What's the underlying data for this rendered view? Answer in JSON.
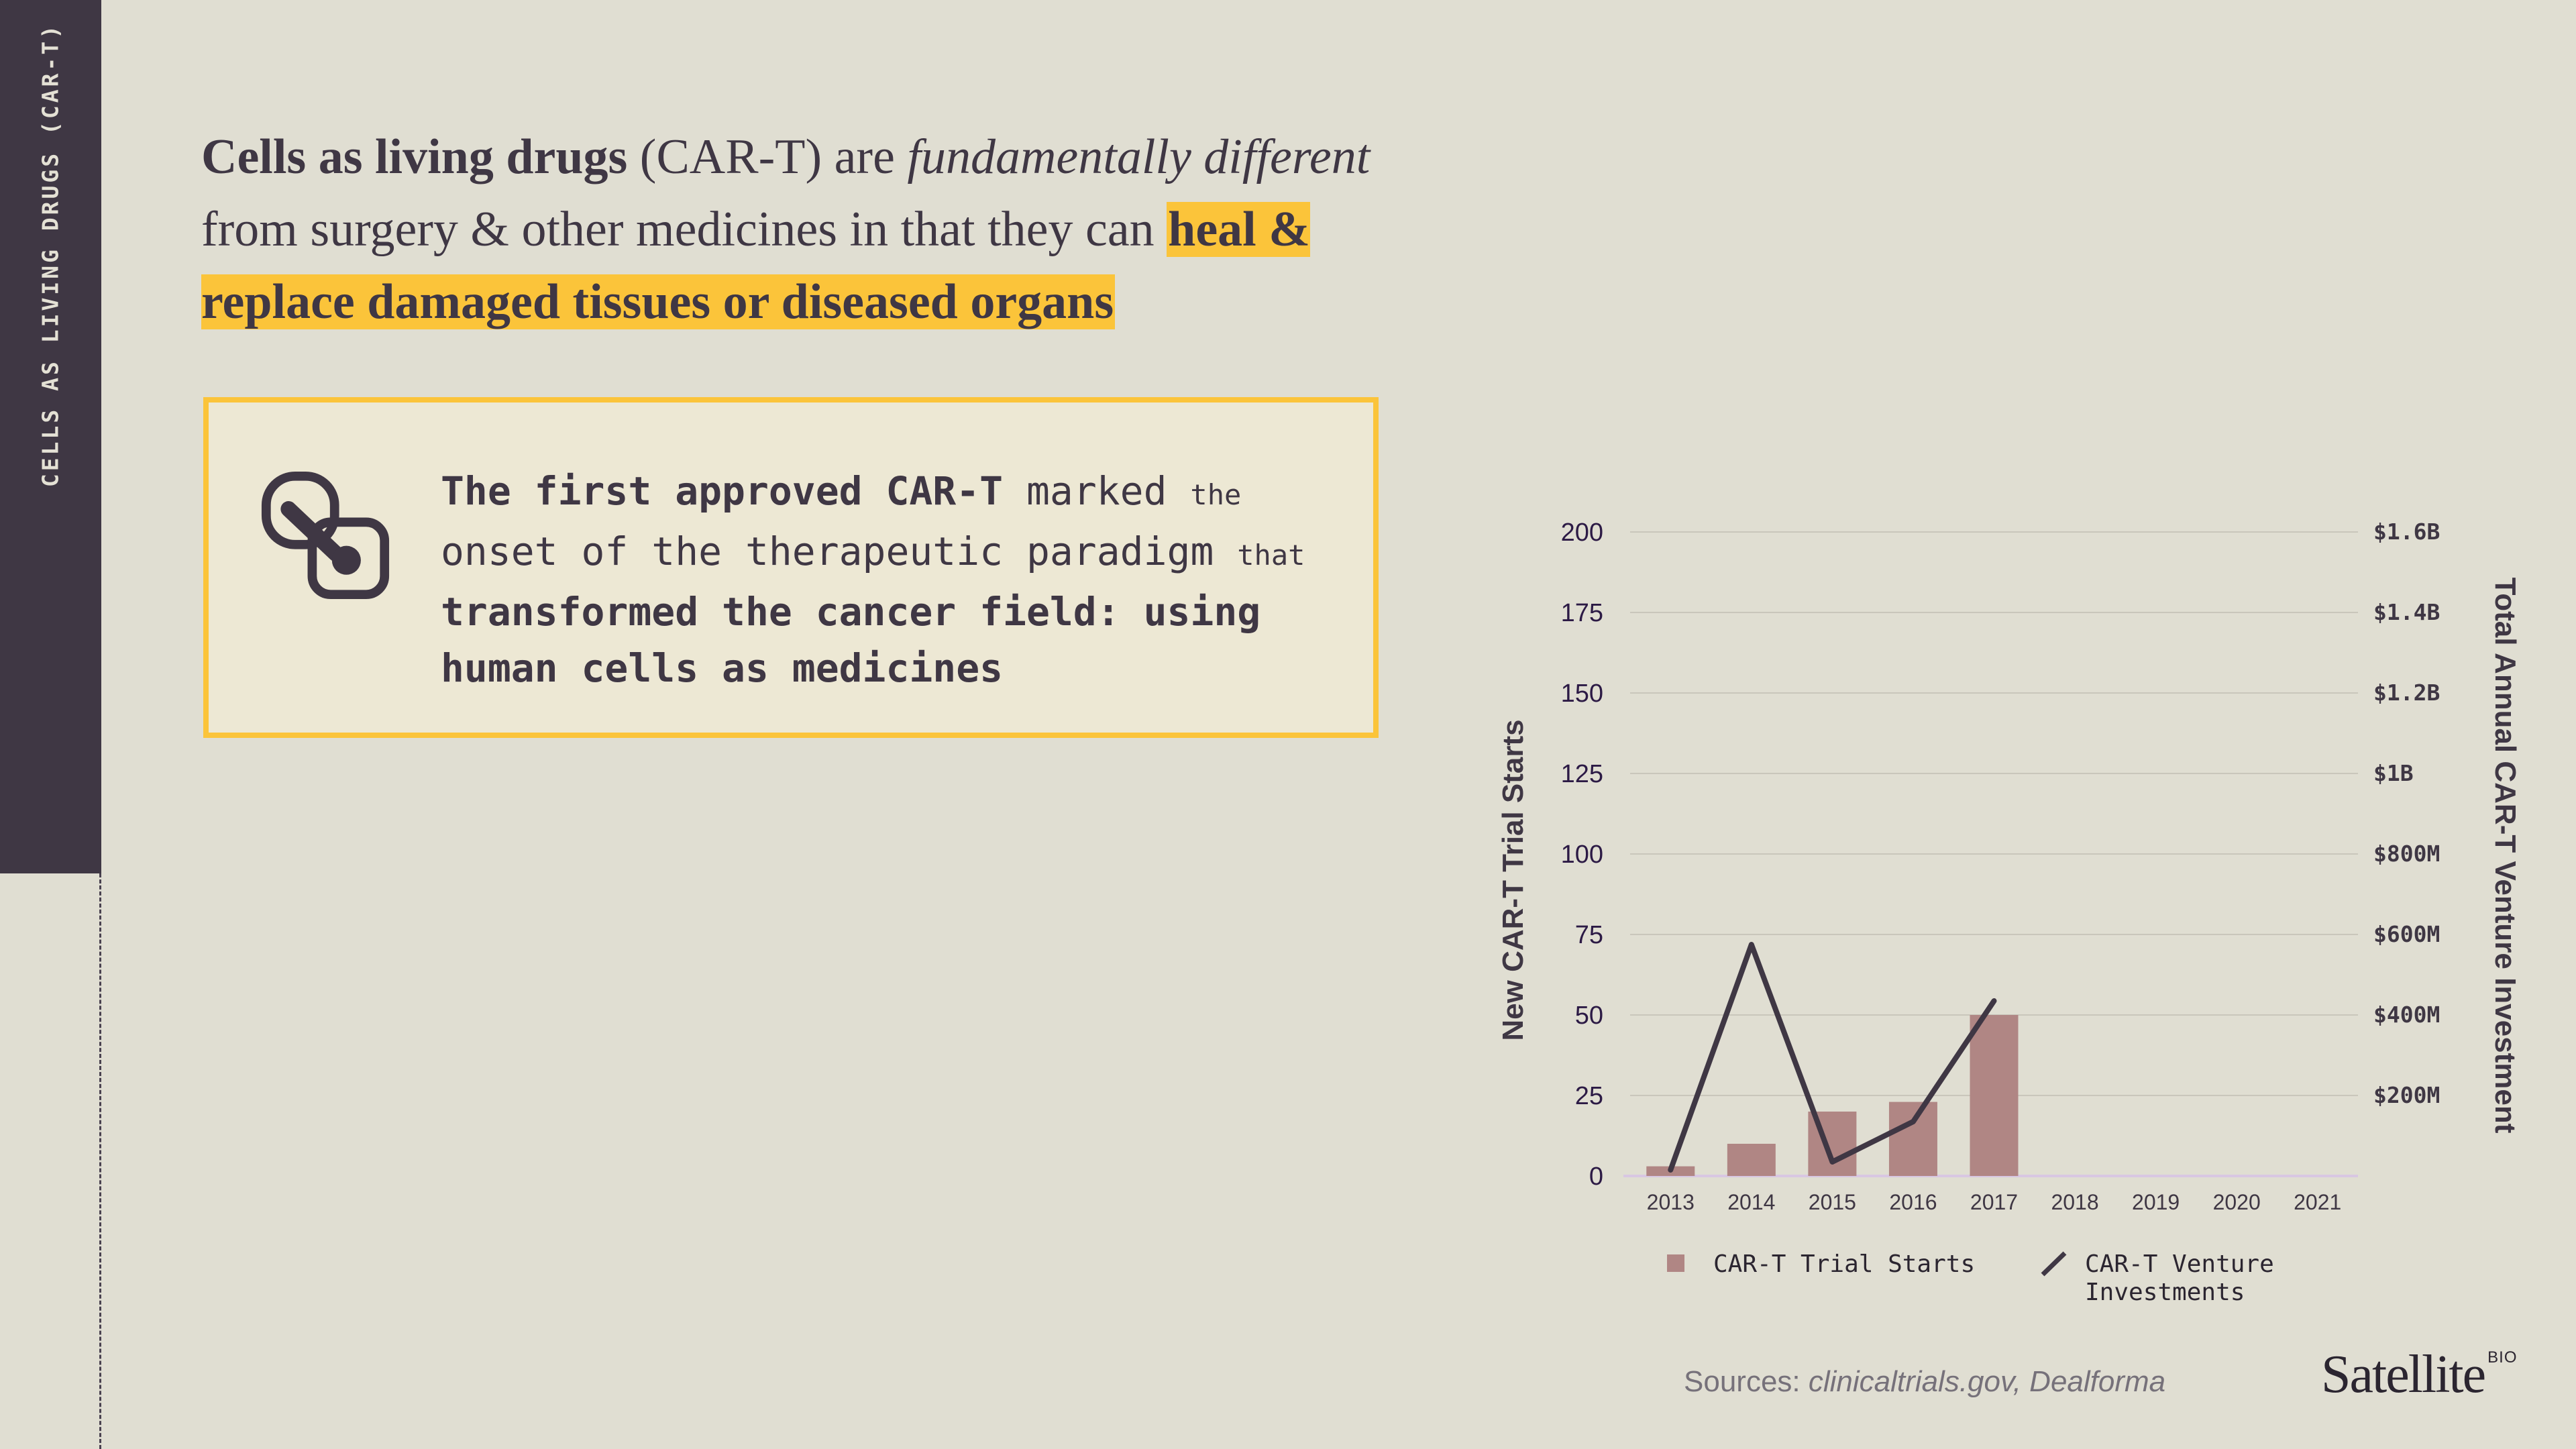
{
  "sidebar": {
    "label": "CELLS AS LIVING DRUGS (CAR-T)"
  },
  "headline": {
    "part1_bold": "Cells as living drugs",
    "part2": " (CAR-T) are ",
    "part3_italic": "fundamentally different",
    "part4": " from surgery & other medicines in that they can ",
    "highlight": "heal & replace damaged tissues or diseased organs",
    "highlight_color": "#fbc43a"
  },
  "callout": {
    "icon": "cell-link-icon",
    "t1_bold": "The first approved CAR-T",
    "t2": " marked ",
    "t3_small": "the",
    "t4": " onset of the therapeutic paradigm ",
    "t5_small": "that",
    "t6_bold": " transformed the cancer field: using human cells as medicines",
    "border_color": "#fbc43a"
  },
  "chart_data": {
    "type": "bar",
    "categories": [
      "2013",
      "2014",
      "2015",
      "2016",
      "2017",
      "2018",
      "2019",
      "2020",
      "2021"
    ],
    "series": [
      {
        "name": "CAR-T Trial Starts",
        "type": "bar",
        "axis": "left",
        "color": "#b08684",
        "values": [
          3,
          10,
          20,
          23,
          50,
          null,
          null,
          null,
          null
        ]
      },
      {
        "name": "CAR-T Venture Investments",
        "type": "line",
        "axis": "right",
        "color": "#3f3744",
        "values": [
          15,
          575,
          35,
          135,
          435,
          null,
          null,
          null,
          null
        ]
      }
    ],
    "ylabel": "New CAR-T Trial Starts",
    "ylabel_right": "Total Annual CAR-T Venture Investment",
    "ylim": [
      0,
      200
    ],
    "yticks": [
      "0",
      "25",
      "50",
      "75",
      "100",
      "125",
      "150",
      "175",
      "200"
    ],
    "yticks_right": [
      {
        "label": "$200M",
        "value": 200
      },
      {
        "label": "$400M",
        "value": 400
      },
      {
        "label": "$600M",
        "value": 600
      },
      {
        "label": "$800M",
        "value": 800
      },
      {
        "label": "$1B",
        "value": 1000
      },
      {
        "label": "$1.2B",
        "value": 1200
      },
      {
        "label": "$1.4B",
        "value": 1400
      },
      {
        "label": "$1.6B",
        "value": 1600
      }
    ],
    "grid": true,
    "legend_position": "bottom"
  },
  "legend": {
    "bar_label": "CAR-T Trial Starts",
    "line_label_1": "CAR-T Venture",
    "line_label_2": "Investments"
  },
  "sources": {
    "prefix": "Sources: ",
    "list": "clinicaltrials.gov, Dealforma"
  },
  "logo": {
    "name": "Satellite",
    "sup": "BIO"
  }
}
